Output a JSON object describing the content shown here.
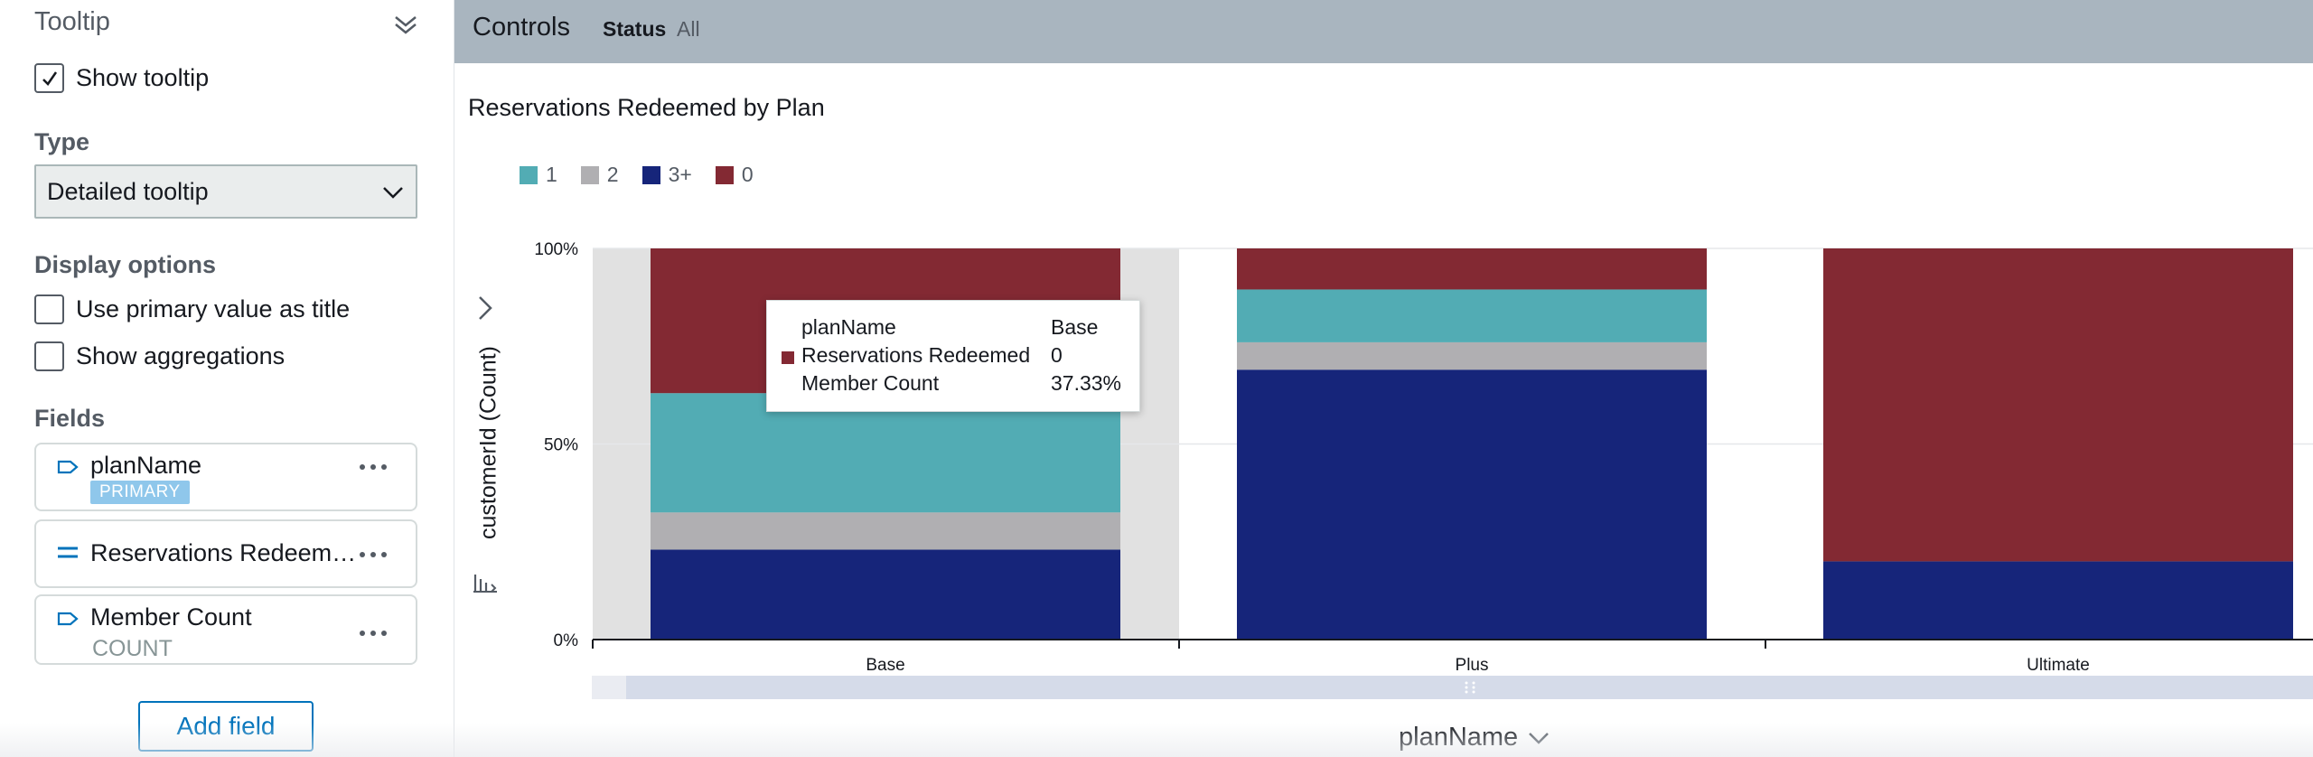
{
  "panel": {
    "title": "Tooltip",
    "show_tooltip_label": "Show tooltip",
    "show_tooltip_checked": true,
    "type_heading": "Type",
    "type_value": "Detailed tooltip",
    "display_heading": "Display options",
    "option_primary_title": "Use primary value as title",
    "option_primary_title_checked": false,
    "option_aggregations": "Show aggregations",
    "option_aggregations_checked": false,
    "fields_heading": "Fields",
    "fields": [
      {
        "name": "planName",
        "badge": "PRIMARY",
        "icon": "dimension-icon"
      },
      {
        "name": "Reservations Redeem…",
        "icon": "measure-icon"
      },
      {
        "name": "Member Count",
        "sub": "COUNT",
        "icon": "dimension-icon"
      }
    ],
    "add_field_label": "Add field"
  },
  "controls": {
    "label": "Controls",
    "status_label": "Status",
    "status_value": "All"
  },
  "colors": {
    "series_1": "#52acb4",
    "series_2": "#b0afb2",
    "series_3plus": "#16257a",
    "series_0": "#832933",
    "accent": "#0073bb"
  },
  "chart_data": {
    "type": "bar",
    "stacked": "percent",
    "title": "Reservations Redeemed by Plan",
    "xlabel": "planName",
    "ylabel": "customerId (Count)",
    "categories": [
      "Base",
      "Plus",
      "Ultimate"
    ],
    "y_ticks": [
      "0%",
      "50%",
      "100%"
    ],
    "ylim": [
      0,
      100
    ],
    "legend_position": "top-left",
    "grid": true,
    "highlighted_category": "Base",
    "series": [
      {
        "name": "3+",
        "color": "#16257a",
        "values": [
          23,
          69,
          20
        ]
      },
      {
        "name": "2",
        "color": "#b0afb2",
        "values": [
          9.5,
          7,
          0
        ]
      },
      {
        "name": "1",
        "color": "#52acb4",
        "values": [
          30.5,
          13.5,
          0
        ]
      },
      {
        "name": "0",
        "color": "#832933",
        "values": [
          37,
          10.5,
          80
        ]
      }
    ],
    "legend_order": [
      "1",
      "2",
      "3+",
      "0"
    ]
  },
  "tooltip": {
    "rows": [
      {
        "key": "planName",
        "value": "Base"
      },
      {
        "key": "Reservations Redeemed",
        "value": "0",
        "swatch": "#832933"
      },
      {
        "key": "Member Count",
        "value": "37.33%"
      }
    ]
  }
}
